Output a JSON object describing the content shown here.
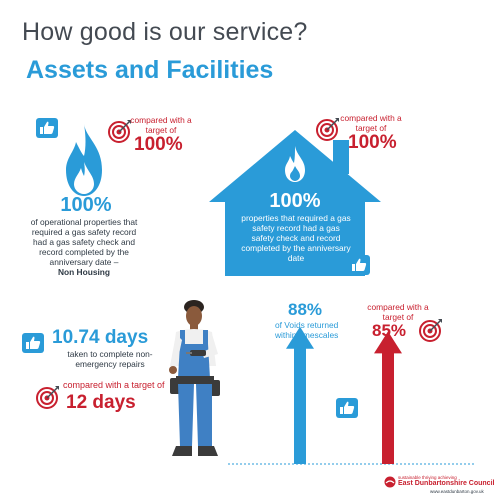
{
  "header": {
    "question": "How good is our service?",
    "section": "Assets and Facilities"
  },
  "gas_non_housing": {
    "target_prefix": "compared with a target of",
    "target_value": "100%",
    "value": "100%",
    "desc": "of operational properties that required a gas safety record had a gas safety check and record completed by the anniversary date –",
    "desc_bold": "Non Housing"
  },
  "gas_housing": {
    "target_prefix": "compared with a target of",
    "target_value": "100%",
    "value": "100%",
    "desc": "properties that required a gas safety record had a gas safety check and record completed by the anniversary date"
  },
  "repairs": {
    "value": "10.74 days",
    "desc": "taken to complete non-emergency repairs",
    "target_prefix": "compared with a target of",
    "target_value": "12 days"
  },
  "voids": {
    "value": "88%",
    "desc": "of Voids returned within timescales",
    "target_prefix": "compared with a target of",
    "target_value": "85%",
    "actual_percent": 88,
    "target_percent": 85
  },
  "footer": {
    "tagline": "sustainable thriving achieving",
    "council": "East Dunbartonshire Council",
    "url": "www.eastdunbarton.gov.uk"
  },
  "colors": {
    "blue": "#2a9bd8",
    "red": "#c8202f",
    "dark": "#444a52"
  }
}
